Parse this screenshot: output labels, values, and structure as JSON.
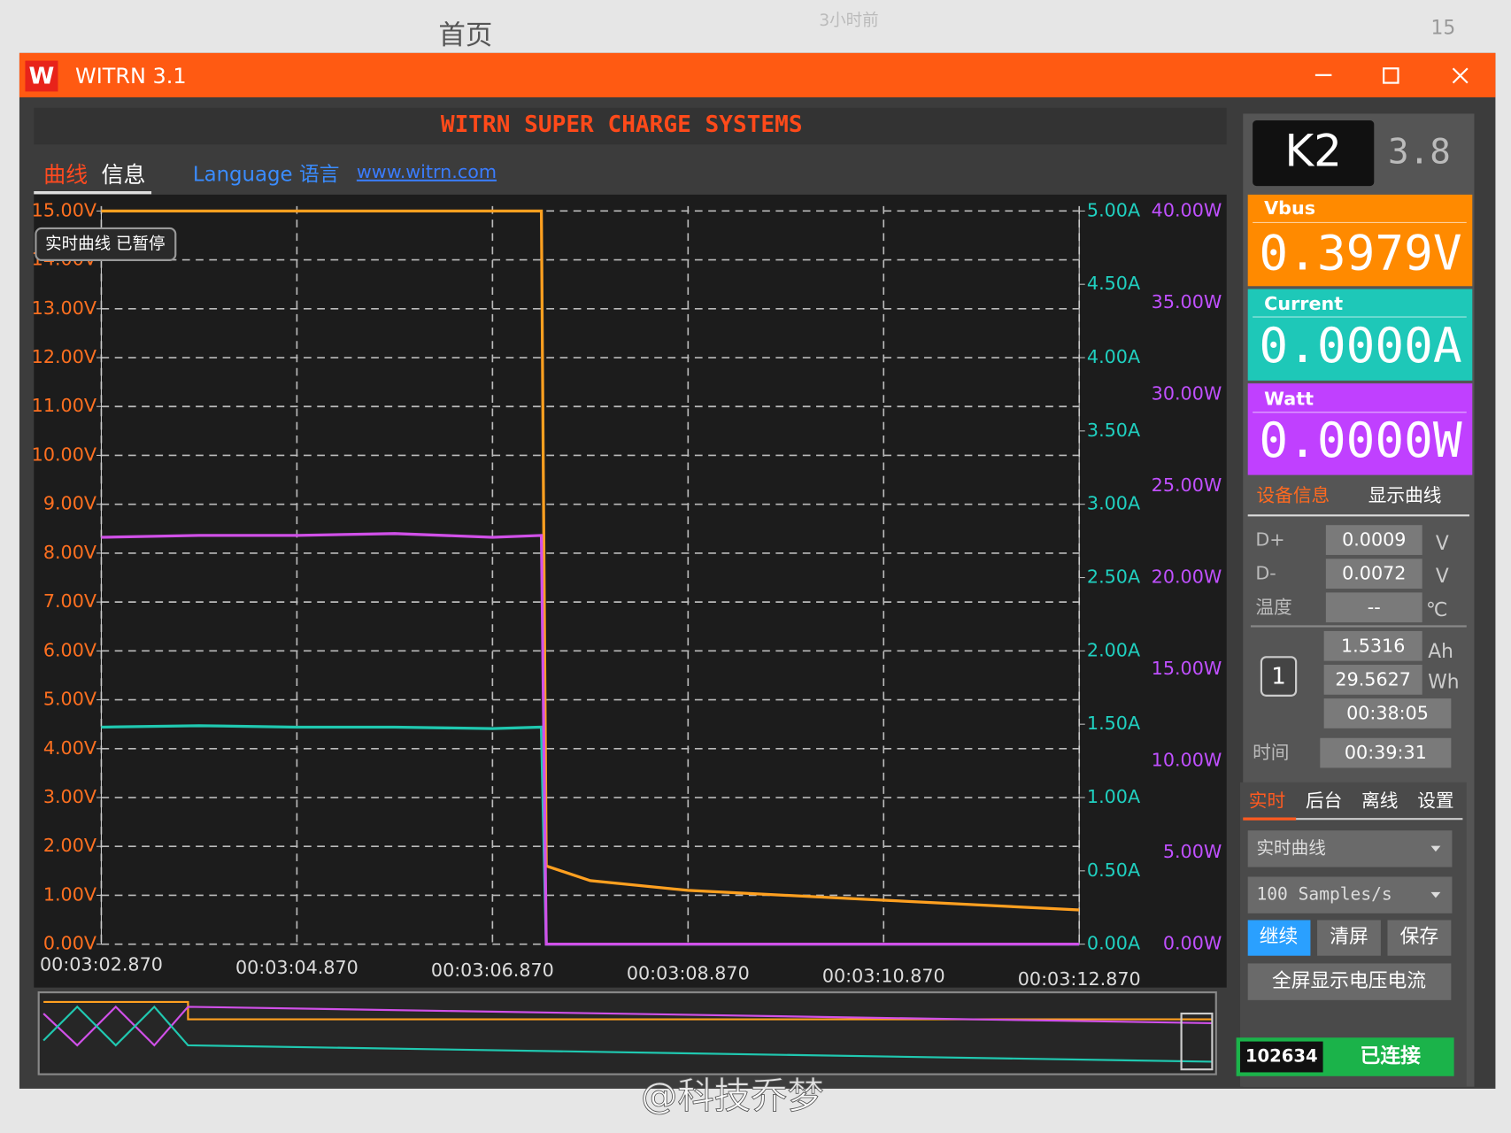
{
  "outer": {
    "tab": "首页",
    "time": "3小时前",
    "count": "15",
    "watermark": "@科技乔梦"
  },
  "window": {
    "title": "WITRN 3.1"
  },
  "header": "WITRN SUPER CHARGE SYSTEMS",
  "tabs": [
    "曲线",
    "信息"
  ],
  "language": "Language 语言",
  "link": "www.witrn.com",
  "status_badge": "实时曲线 已暂停",
  "chart_data": {
    "type": "line",
    "grid": true,
    "x": [
      0,
      1,
      2,
      3,
      4,
      4.5,
      4.55,
      5,
      6,
      7,
      8,
      9,
      10
    ],
    "xlim": [
      0,
      10
    ],
    "xticks": [
      {
        "value": 0,
        "label": "00:03:02.870"
      },
      {
        "value": 2,
        "label": "00:03:04.870"
      },
      {
        "value": 4,
        "label": "00:03:06.870"
      },
      {
        "value": 6,
        "label": "00:03:08.870"
      },
      {
        "value": 8,
        "label": "00:03:10.870"
      },
      {
        "value": 10,
        "label": "00:03:12.870"
      }
    ],
    "ylim": [
      0,
      15
    ],
    "yticks": [
      {
        "value": 0,
        "label": "0.00V"
      },
      {
        "value": 1,
        "label": "1.00V"
      },
      {
        "value": 2,
        "label": "2.00V"
      },
      {
        "value": 3,
        "label": "3.00V"
      },
      {
        "value": 4,
        "label": "4.00V"
      },
      {
        "value": 5,
        "label": "5.00V"
      },
      {
        "value": 6,
        "label": "6.00V"
      },
      {
        "value": 7,
        "label": "7.00V"
      },
      {
        "value": 8,
        "label": "8.00V"
      },
      {
        "value": 9,
        "label": "9.00V"
      },
      {
        "value": 10,
        "label": "10.00V"
      },
      {
        "value": 11,
        "label": "11.00V"
      },
      {
        "value": 12,
        "label": "12.00V"
      },
      {
        "value": 13,
        "label": "13.00V"
      },
      {
        "value": 14,
        "label": "14.00V"
      },
      {
        "value": 15,
        "label": "15.00V"
      }
    ],
    "y2lim": [
      0,
      5
    ],
    "y2ticks": [
      {
        "value": 0,
        "label": "0.00A"
      },
      {
        "value": 0.5,
        "label": "0.50A"
      },
      {
        "value": 1,
        "label": "1.00A"
      },
      {
        "value": 1.5,
        "label": "1.50A"
      },
      {
        "value": 2,
        "label": "2.00A"
      },
      {
        "value": 2.5,
        "label": "2.50A"
      },
      {
        "value": 3,
        "label": "3.00A"
      },
      {
        "value": 3.5,
        "label": "3.50A"
      },
      {
        "value": 4,
        "label": "4.00A"
      },
      {
        "value": 4.5,
        "label": "4.50A"
      },
      {
        "value": 5,
        "label": "5.00A"
      }
    ],
    "y3lim": [
      0,
      40
    ],
    "y3ticks": [
      {
        "value": 0,
        "label": "0.00W"
      },
      {
        "value": 5,
        "label": "5.00W"
      },
      {
        "value": 10,
        "label": "10.00W"
      },
      {
        "value": 15,
        "label": "15.00W"
      },
      {
        "value": 20,
        "label": "20.00W"
      },
      {
        "value": 25,
        "label": "25.00W"
      },
      {
        "value": 30,
        "label": "30.00W"
      },
      {
        "value": 35,
        "label": "35.00W"
      },
      {
        "value": 40,
        "label": "40.00W"
      }
    ],
    "series": [
      {
        "color": "#ffa020",
        "axis": "y",
        "values": [
          15,
          15,
          15,
          15,
          15,
          15,
          1.6,
          1.3,
          1.1,
          1.0,
          0.9,
          0.8,
          0.7
        ]
      },
      {
        "color": "#20c8b0",
        "axis": "y2",
        "values": [
          1.48,
          1.49,
          1.48,
          1.48,
          1.47,
          1.48,
          0,
          0,
          0,
          0,
          0,
          0,
          0
        ]
      },
      {
        "color": "#d050e8",
        "axis": "y3",
        "values": [
          22.2,
          22.3,
          22.3,
          22.4,
          22.2,
          22.3,
          0,
          0,
          0,
          0,
          0,
          0,
          0
        ]
      }
    ]
  },
  "device": {
    "model": "K2",
    "version": "3.8"
  },
  "readings": [
    {
      "label": "Vbus",
      "value": "0.3979V"
    },
    {
      "label": "Current",
      "value": "0.0000A"
    },
    {
      "label": "Watt",
      "value": "0.0000W"
    }
  ],
  "info_tabs": [
    "设备信息",
    "显示曲线"
  ],
  "info_rows": [
    {
      "label": "D+",
      "value": "0.0009",
      "unit": "V"
    },
    {
      "label": "D-",
      "value": "0.0072",
      "unit": "V"
    },
    {
      "label": "温度",
      "value": "--",
      "unit": "℃"
    }
  ],
  "group": "1",
  "accum": [
    {
      "value": "1.5316",
      "unit": "Ah"
    },
    {
      "value": "29.5627",
      "unit": "Wh"
    },
    {
      "value": "00:38:05"
    }
  ],
  "time": {
    "label": "时间",
    "value": "00:39:31"
  },
  "mode_tabs": [
    "实时",
    "后台",
    "离线",
    "设置"
  ],
  "selects": [
    "实时曲线",
    "100 Samples/s"
  ],
  "buttons": [
    "继续",
    "清屏",
    "保存"
  ],
  "fullscreen": "全屏显示电压电流",
  "status": {
    "id": "102634",
    "state": "已连接"
  }
}
